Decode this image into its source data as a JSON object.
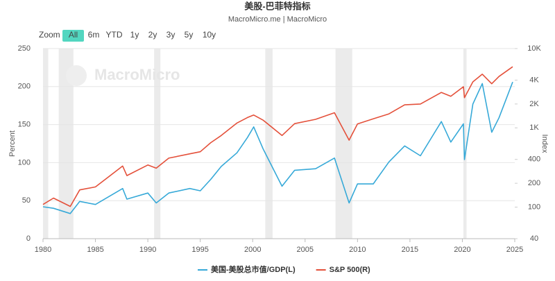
{
  "chart_data": {
    "type": "line",
    "title": "美股-巴菲特指标",
    "subtitle": "MacroMicro.me | MacroMicro",
    "watermark": "MacroMicro",
    "range_selector": {
      "label": "Zoom",
      "buttons": [
        "All",
        "6m",
        "YTD",
        "1y",
        "2y",
        "3y",
        "5y",
        "10y"
      ],
      "selected": 0
    },
    "y_label": "Percent",
    "y2_label": "Index",
    "x": [
      1980,
      1981,
      1982.6,
      1983.5,
      1985,
      1987.6,
      1988,
      1990,
      1990.8,
      1992,
      1994,
      1995,
      1996,
      1997,
      1998.5,
      1999.5,
      2000.1,
      2001,
      2002.8,
      2004,
      2006,
      2007.8,
      2009.2,
      2010,
      2011.5,
      2013,
      2014.5,
      2016,
      2018,
      2018.9,
      2020.1,
      2020.2,
      2021,
      2021.9,
      2022.8,
      2023.5,
      2024.8
    ],
    "series": [
      {
        "name": "美国-美股总市值/GDP(L)",
        "color": "#36a9d8",
        "axis": "y",
        "values": [
          42,
          40,
          33,
          49,
          45,
          66,
          52,
          60,
          47,
          60,
          66,
          63,
          78,
          95,
          113,
          133,
          147,
          118,
          69,
          90,
          92,
          106,
          47,
          72,
          72,
          101,
          122,
          109,
          154,
          127,
          151,
          104,
          177,
          204,
          140,
          159,
          206
        ]
      },
      {
        "name": "S&P 500(R)",
        "color": "#e4503a",
        "axis": "y2",
        "values": [
          108,
          130,
          102,
          165,
          180,
          330,
          250,
          340,
          310,
          415,
          470,
          500,
          650,
          800,
          1150,
          1350,
          1450,
          1250,
          800,
          1130,
          1280,
          1550,
          700,
          1120,
          1300,
          1500,
          1950,
          2000,
          2800,
          2500,
          3300,
          2400,
          3800,
          4750,
          3600,
          4450,
          5900
        ]
      }
    ],
    "recessions": [
      [
        1980.0,
        1980.5
      ],
      [
        1981.5,
        1982.9
      ],
      [
        1990.6,
        1991.2
      ],
      [
        2001.2,
        2001.9
      ],
      [
        2007.9,
        2009.5
      ],
      [
        2020.1,
        2020.4
      ]
    ],
    "xlim": [
      1980,
      2025
    ],
    "xticks": [
      1980,
      1985,
      1990,
      1995,
      2000,
      2005,
      2010,
      2015,
      2020,
      2025
    ],
    "ylim": [
      0,
      250
    ],
    "yticks": [
      0,
      50,
      100,
      150,
      200,
      250
    ],
    "y2lim": [
      40,
      10000
    ],
    "y2scale": "log",
    "y2ticks": [
      40,
      100,
      200,
      400,
      {
        "value": 1000,
        "label": "1K"
      },
      {
        "value": 2000,
        "label": "2K"
      },
      {
        "value": 4000,
        "label": "4K"
      },
      {
        "value": 10000,
        "label": "10K"
      }
    ],
    "grid": true,
    "legend": "bottom"
  }
}
